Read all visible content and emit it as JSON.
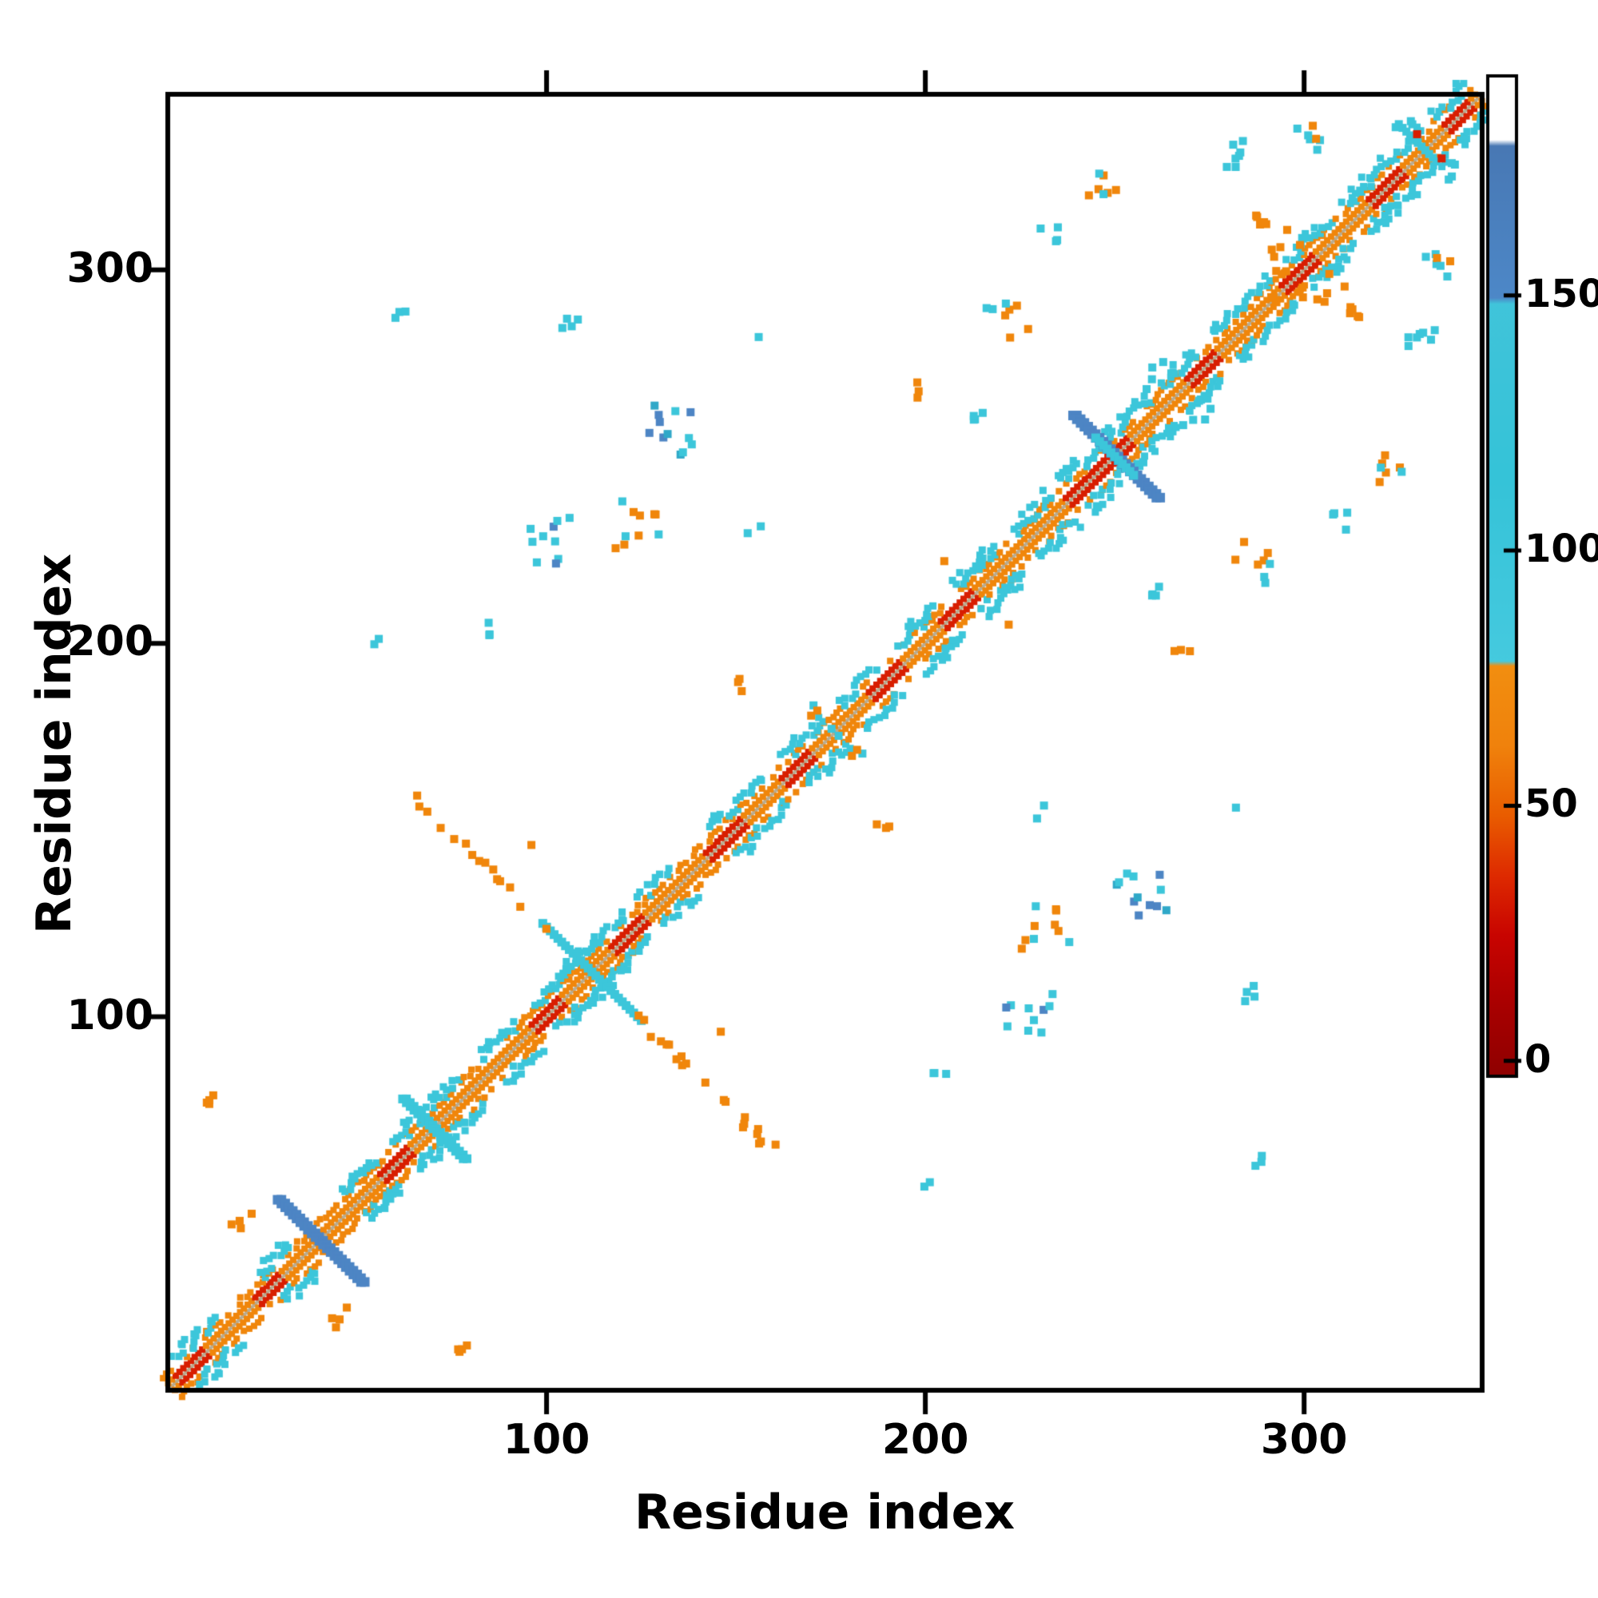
{
  "chart_data": {
    "type": "heatmap",
    "title": "",
    "xlabel": "Residue index",
    "ylabel": "Residue index",
    "xlim": [
      0,
      347
    ],
    "ylim": [
      0,
      347
    ],
    "xticks": [
      100,
      200,
      300
    ],
    "yticks": [
      100,
      200,
      300
    ],
    "grid": false,
    "description": "Protein residue-residue contact map; colored squares mark contacts, color value given by colorbar; map is symmetric about the main diagonal",
    "palette": {
      "orange": "#f0860b",
      "cyan": "#3cc6da",
      "teal": "#2fa8c8",
      "blue": "#4d85c4",
      "red": "#d81e00",
      "darkred": "#a50000",
      "center": "#b9ab8f",
      "background": "#ffffff",
      "frame": "#000000"
    },
    "colorbar": {
      "ticks": [
        0,
        50,
        100,
        150
      ],
      "vmin": -3,
      "vmax": 193,
      "stops": [
        {
          "frac": 0.0,
          "color": "#8f0000"
        },
        {
          "frac": 0.07,
          "color": "#a80000"
        },
        {
          "frac": 0.14,
          "color": "#c80400"
        },
        {
          "frac": 0.2,
          "color": "#de2a00"
        },
        {
          "frac": 0.26,
          "color": "#e95c00"
        },
        {
          "frac": 0.33,
          "color": "#f0820c"
        },
        {
          "frac": 0.41,
          "color": "#f28e10"
        },
        {
          "frac": 0.415,
          "color": "#45cadf"
        },
        {
          "frac": 0.6,
          "color": "#35c3d8"
        },
        {
          "frac": 0.772,
          "color": "#40c4da"
        },
        {
          "frac": 0.778,
          "color": "#4d88c8"
        },
        {
          "frac": 0.93,
          "color": "#4878b4"
        },
        {
          "frac": 0.936,
          "color": "#ffffff"
        },
        {
          "frac": 1.0,
          "color": "#ffffff"
        }
      ]
    },
    "diagonal": {
      "range": [
        1,
        346
      ],
      "center_color": "#b9ab8f",
      "inner": "orange",
      "inner_red": "red",
      "red_segments": [
        [
          3,
          10
        ],
        [
          24,
          30
        ],
        [
          57,
          64
        ],
        [
          97,
          104
        ],
        [
          118,
          126
        ],
        [
          143,
          152
        ],
        [
          163,
          170
        ],
        [
          186,
          194
        ],
        [
          205,
          213
        ],
        [
          238,
          254
        ],
        [
          270,
          277
        ],
        [
          295,
          303
        ],
        [
          318,
          326
        ],
        [
          338,
          344
        ]
      ],
      "cyan_segments": [
        [
          5,
          16
        ],
        [
          28,
          35
        ],
        [
          50,
          58
        ],
        [
          63,
          80
        ],
        [
          86,
          95
        ],
        [
          100,
          124
        ],
        [
          128,
          136
        ],
        [
          147,
          160
        ],
        [
          166,
          176
        ],
        [
          181,
          190
        ],
        [
          196,
          206
        ],
        [
          212,
          222
        ],
        [
          227,
          236
        ],
        [
          240,
          262
        ],
        [
          266,
          274
        ],
        [
          280,
          294
        ],
        [
          299,
          310
        ],
        [
          314,
          334
        ],
        [
          338,
          346
        ]
      ]
    },
    "crosses": [
      {
        "center": 40,
        "arm": 11,
        "width": 2,
        "color": "blue",
        "size": 12
      },
      {
        "center": 70,
        "arm": 8,
        "width": 2,
        "color": "cyan",
        "size": 11
      },
      {
        "center": 112,
        "arm": 13,
        "width": 1,
        "color": "cyan",
        "size": 11
      },
      {
        "center": 112,
        "arm": 48,
        "inner": 13,
        "skip": 0.5,
        "jitter": 1.5,
        "width": 1,
        "color": "orange",
        "size": 10
      },
      {
        "center": 250,
        "arm": 11,
        "width": 2,
        "color": "blue",
        "size": 12
      },
      {
        "center": 250,
        "arm": 5,
        "width": 1,
        "color": "cyan",
        "size": 11
      },
      {
        "center": 332,
        "arm": 7,
        "skip": 0.3,
        "width": 1,
        "color": "cyan",
        "size": 10
      }
    ],
    "clusters": [
      {
        "x": 12,
        "y": 75,
        "n": 4,
        "spread": 4,
        "colors": [
          "orange"
        ]
      },
      {
        "x": 20,
        "y": 47,
        "n": 4,
        "spread": 4,
        "colors": [
          "orange"
        ]
      },
      {
        "x": 63,
        "y": 288,
        "n": 3,
        "spread": 3,
        "colors": [
          "cyan"
        ]
      },
      {
        "x": 54,
        "y": 200,
        "n": 2,
        "spread": 2,
        "colors": [
          "cyan"
        ]
      },
      {
        "x": 85,
        "y": 204,
        "n": 3,
        "spread": 3,
        "colors": [
          "cyan"
        ]
      },
      {
        "x": 100,
        "y": 228,
        "n": 10,
        "spread": 7,
        "colors": [
          "cyan",
          "cyan",
          "blue"
        ]
      },
      {
        "x": 124,
        "y": 231,
        "n": 9,
        "spread": 6,
        "colors": [
          "orange",
          "orange",
          "cyan"
        ]
      },
      {
        "x": 133,
        "y": 257,
        "n": 12,
        "spread": 7,
        "colors": [
          "cyan",
          "teal",
          "blue"
        ]
      },
      {
        "x": 107,
        "y": 287,
        "n": 4,
        "spread": 4,
        "colors": [
          "cyan"
        ]
      },
      {
        "x": 150,
        "y": 189,
        "n": 3,
        "spread": 3,
        "colors": [
          "orange"
        ]
      },
      {
        "x": 172,
        "y": 180,
        "n": 4,
        "spread": 4,
        "colors": [
          "cyan",
          "orange"
        ]
      },
      {
        "x": 199,
        "y": 267,
        "n": 3,
        "spread": 3,
        "colors": [
          "orange"
        ]
      },
      {
        "x": 213,
        "y": 261,
        "n": 4,
        "spread": 3,
        "colors": [
          "cyan"
        ]
      },
      {
        "x": 222,
        "y": 287,
        "n": 8,
        "spread": 6,
        "colors": [
          "orange",
          "cyan"
        ]
      },
      {
        "x": 233,
        "y": 310,
        "n": 4,
        "spread": 3,
        "colors": [
          "cyan"
        ]
      },
      {
        "x": 247,
        "y": 322,
        "n": 7,
        "spread": 5,
        "colors": [
          "orange",
          "orange",
          "cyan"
        ]
      },
      {
        "x": 262,
        "y": 272,
        "n": 5,
        "spread": 4,
        "colors": [
          "cyan"
        ]
      },
      {
        "x": 283,
        "y": 330,
        "n": 7,
        "spread": 5,
        "colors": [
          "cyan",
          "teal"
        ]
      },
      {
        "x": 303,
        "y": 337,
        "n": 7,
        "spread": 5,
        "colors": [
          "orange",
          "cyan"
        ]
      },
      {
        "x": 296,
        "y": 292,
        "n": 4,
        "spread": 4,
        "colors": [
          "orange"
        ]
      },
      {
        "x": 295,
        "y": 307,
        "n": 4,
        "spread": 4,
        "colors": [
          "orange"
        ]
      },
      {
        "x": 310,
        "y": 291,
        "n": 6,
        "spread": 5,
        "colors": [
          "orange"
        ]
      },
      {
        "x": 327,
        "y": 338,
        "n": 4,
        "spread": 3,
        "colors": [
          "red",
          "cyan"
        ]
      },
      {
        "x": 230,
        "y": 155,
        "n": 2,
        "spread": 2,
        "colors": [
          "cyan"
        ]
      }
    ],
    "dots": [
      {
        "x": 120,
        "y": 238,
        "c": "cyan"
      },
      {
        "x": 156,
        "y": 282,
        "c": "cyan"
      },
      {
        "x": 96,
        "y": 146,
        "c": "orange"
      },
      {
        "x": 205,
        "y": 222,
        "c": "orange"
      }
    ]
  }
}
